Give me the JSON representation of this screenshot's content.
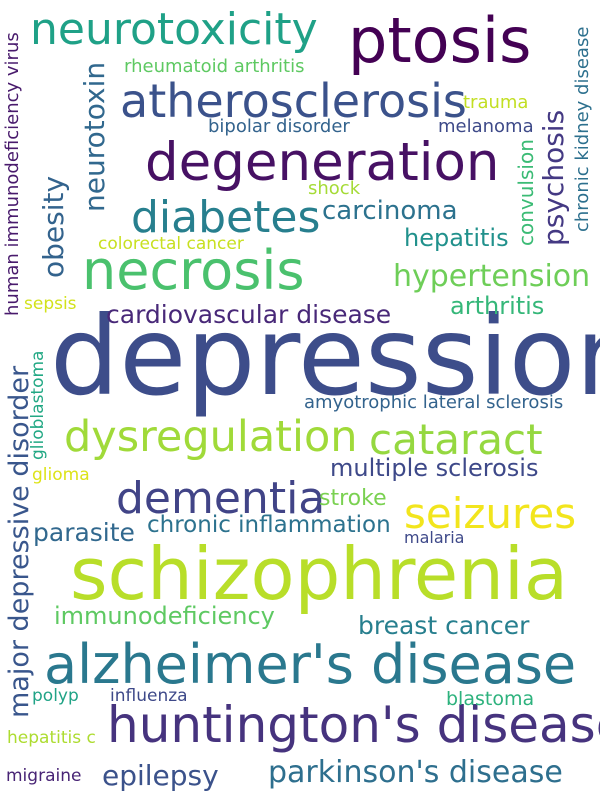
{
  "words": [
    {
      "text": "depression",
      "color": "#3d4d8a",
      "vertical": false
    },
    {
      "text": "schizophrenia",
      "color": "#b8de29",
      "vertical": false
    },
    {
      "text": "alzheimer's disease",
      "color": "#2a788e",
      "vertical": false
    },
    {
      "text": "huntington's disease",
      "color": "#46337e",
      "vertical": false
    },
    {
      "text": "ptosis",
      "color": "#440154",
      "vertical": false
    },
    {
      "text": "degeneration",
      "color": "#471164",
      "vertical": false
    },
    {
      "text": "necrosis",
      "color": "#4ac16d",
      "vertical": false
    },
    {
      "text": "atherosclerosis",
      "color": "#3b528b",
      "vertical": false
    },
    {
      "text": "neurotoxicity",
      "color": "#1fa187",
      "vertical": false
    },
    {
      "text": "diabetes",
      "color": "#277f8e",
      "vertical": false
    },
    {
      "text": "dysregulation",
      "color": "#a0da39",
      "vertical": false
    },
    {
      "text": "cataract",
      "color": "#95d840",
      "vertical": false
    },
    {
      "text": "dementia",
      "color": "#414487",
      "vertical": false
    },
    {
      "text": "seizures",
      "color": "#f2e51d",
      "vertical": false
    },
    {
      "text": "hypertension",
      "color": "#6ece58",
      "vertical": false
    },
    {
      "text": "cardiovascular disease",
      "color": "#482878",
      "vertical": false
    },
    {
      "text": "carcinoma",
      "color": "#2c728e",
      "vertical": false
    },
    {
      "text": "hepatitis",
      "color": "#21918c",
      "vertical": false
    },
    {
      "text": "arthritis",
      "color": "#35b779",
      "vertical": false
    },
    {
      "text": "multiple sclerosis",
      "color": "#3e4989",
      "vertical": false
    },
    {
      "text": "parkinson's disease",
      "color": "#2e6f8e",
      "vertical": false
    },
    {
      "text": "breast cancer",
      "color": "#277f8e",
      "vertical": false
    },
    {
      "text": "immunodeficiency",
      "color": "#5ec962",
      "vertical": false
    },
    {
      "text": "parasite",
      "color": "#31688e",
      "vertical": false
    },
    {
      "text": "chronic inflammation",
      "color": "#2c728e",
      "vertical": false
    },
    {
      "text": "epilepsy",
      "color": "#3b528b",
      "vertical": false
    },
    {
      "text": "amyotrophic lateral sclerosis",
      "color": "#33638d",
      "vertical": false
    },
    {
      "text": "stroke",
      "color": "#7ad151",
      "vertical": false
    },
    {
      "text": "rheumatoid arthritis",
      "color": "#5ec962",
      "vertical": false
    },
    {
      "text": "bipolar disorder",
      "color": "#33638d",
      "vertical": false
    },
    {
      "text": "melanoma",
      "color": "#3e4a89",
      "vertical": false
    },
    {
      "text": "trauma",
      "color": "#c2df23",
      "vertical": false
    },
    {
      "text": "shock",
      "color": "#a5db36",
      "vertical": false
    },
    {
      "text": "colorectal cancer",
      "color": "#c8e020",
      "vertical": false
    },
    {
      "text": "malaria",
      "color": "#3e4989",
      "vertical": false
    },
    {
      "text": "blastoma",
      "color": "#2db27d",
      "vertical": false
    },
    {
      "text": "influenza",
      "color": "#3e4989",
      "vertical": false
    },
    {
      "text": "polyp",
      "color": "#20a386",
      "vertical": false
    },
    {
      "text": "hepatitis c",
      "color": "#addc30",
      "vertical": false
    },
    {
      "text": "migraine",
      "color": "#482475",
      "vertical": false
    },
    {
      "text": "glioma",
      "color": "#dde318",
      "vertical": false
    },
    {
      "text": "sepsis",
      "color": "#d2e21b",
      "vertical": false
    },
    {
      "text": "neurotoxin",
      "color": "#31688e",
      "vertical": true
    },
    {
      "text": "obesity",
      "color": "#33638d",
      "vertical": true
    },
    {
      "text": "psychosis",
      "color": "#443983",
      "vertical": true
    },
    {
      "text": "convulsion",
      "color": "#3bbb75",
      "vertical": true
    },
    {
      "text": "chronic kidney disease",
      "color": "#2d708e",
      "vertical": true
    },
    {
      "text": "human immunodeficiency virus",
      "color": "#481a6c",
      "vertical": true
    },
    {
      "text": "major depressive disorder",
      "color": "#39568c",
      "vertical": true
    },
    {
      "text": "glioblastoma",
      "color": "#22a884",
      "vertical": true
    }
  ]
}
